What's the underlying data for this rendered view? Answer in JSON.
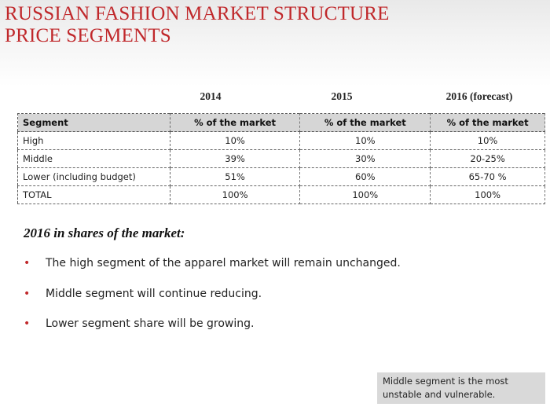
{
  "title": {
    "line1": "RUSSIAN FASHION MARKET STRUCTURE",
    "line2": "PRICE SEGMENTS"
  },
  "years": [
    "2014",
    "2015",
    "2016 (forecast)"
  ],
  "table": {
    "headers": [
      "Segment",
      "% of the market",
      "% of the market",
      "% of the market"
    ],
    "rows": [
      [
        "High",
        "10%",
        "10%",
        "10%"
      ],
      [
        "Middle",
        "39%",
        "30%",
        "20-25%"
      ],
      [
        "Lower (including budget)",
        "51%",
        "60%",
        "65-70 %"
      ],
      [
        "TOTAL",
        "100%",
        "100%",
        "100%"
      ]
    ]
  },
  "subheading": "2016 in shares of the market:",
  "bullets": [
    "The high segment of the apparel market will remain unchanged.",
    "Middle segment will continue reducing.",
    "Lower segment share will be growing."
  ],
  "bullet_symbol": "•",
  "note": "Middle segment is the most unstable and vulnerable.",
  "colors": {
    "title": "#c0282b",
    "bullet": "#c0282b",
    "table_header_bg": "#d6d6d6",
    "note_bg": "#d9d9d9"
  }
}
